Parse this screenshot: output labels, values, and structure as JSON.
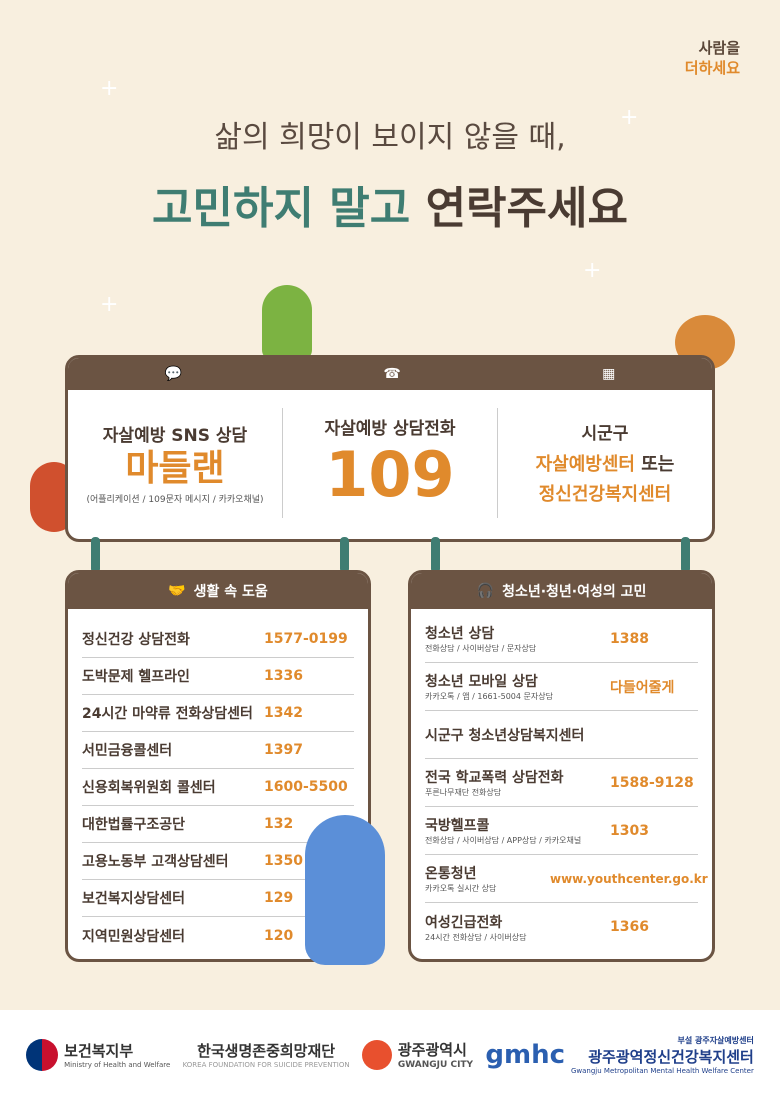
{
  "brand": {
    "line1": "사람을",
    "line2": "더하세요"
  },
  "headline": {
    "line1": "삶의 희망이 보이지 않을 때,",
    "line2_accent": "고민하지 말고",
    "line2_rest": "연락주세요"
  },
  "main_board": {
    "columns": [
      {
        "icon": "chat-bubble-icon",
        "label": "자살예방 SNS 상담",
        "value": "마들랜",
        "note": "(어플리케이션 / 109문자 메시지 / 카카오채널)"
      },
      {
        "icon": "phone-icon",
        "label": "자살예방 상담전화",
        "value": "109"
      },
      {
        "icon": "building-icon",
        "label": "시군구",
        "value_line1": "자살예방센터",
        "value_line1_suffix": "또는",
        "value_line2": "정신건강복지센터"
      }
    ]
  },
  "life_help": {
    "title": "생활 속 도움",
    "icon": "handshake-icon",
    "rows": [
      {
        "name": "정신건강 상담전화",
        "value": "1577-0199"
      },
      {
        "name": "도박문제 헬프라인",
        "value": "1336"
      },
      {
        "name": "24시간 마약류 전화상담센터",
        "value": "1342"
      },
      {
        "name": "서민금융콜센터",
        "value": "1397"
      },
      {
        "name": "신용회복위원회 콜센터",
        "value": "1600-5500"
      },
      {
        "name": "대한법률구조공단",
        "value": "132"
      },
      {
        "name": "고용노동부 고객상담센터",
        "value": "1350"
      },
      {
        "name": "보건복지상담센터",
        "value": "129"
      },
      {
        "name": "지역민원상담센터",
        "value": "120"
      }
    ]
  },
  "youth_help": {
    "title": "청소년·청년·여성의 고민",
    "icon": "headset-icon",
    "rows": [
      {
        "name": "청소년 상담",
        "sub": "전화상담 / 사이버상담 / 문자상담",
        "value": "1388"
      },
      {
        "name": "청소년 모바일 상담",
        "sub": "카카오톡 / 앱 / 1661-5004 문자상담",
        "value": "다들어줄게"
      },
      {
        "name": "시군구 청소년상담복지센터",
        "sub": "",
        "value": ""
      },
      {
        "name": "전국 학교폭력 상담전화",
        "sub": "푸른나무재단 전화상담",
        "value": "1588-9128"
      },
      {
        "name": "국방헬프콜",
        "sub": "전화상담 / 사이버상담 / APP상담 / 카카오채널",
        "value": "1303"
      },
      {
        "name": "온통청년",
        "sub": "카카오톡 실시간 상담",
        "value": "www.youthcenter.go.kr"
      },
      {
        "name": "여성긴급전화",
        "sub": "24시간 전화상담 / 사이버상담",
        "value": "1366"
      }
    ]
  },
  "footer": {
    "mohw": {
      "name": "보건복지부",
      "en": "Ministry of Health and Welfare"
    },
    "kfsp": {
      "name": "한국생명존중희망재단",
      "en": "KOREA FOUNDATION FOR SUICIDE PREVENTION"
    },
    "gwangju": {
      "name": "광주광역시",
      "en": "GWANGJU CITY"
    },
    "gmhc": {
      "mark": "gmhc",
      "sub": "부설 광주자살예방센터",
      "name": "광주광역정신건강복지센터",
      "en": "Gwangju Metropolitan Mental Health Welfare Center"
    }
  },
  "colors": {
    "background": "#f8efdf",
    "brown": "#6b5443",
    "teal": "#3f7d72",
    "orange": "#e08a2c"
  }
}
